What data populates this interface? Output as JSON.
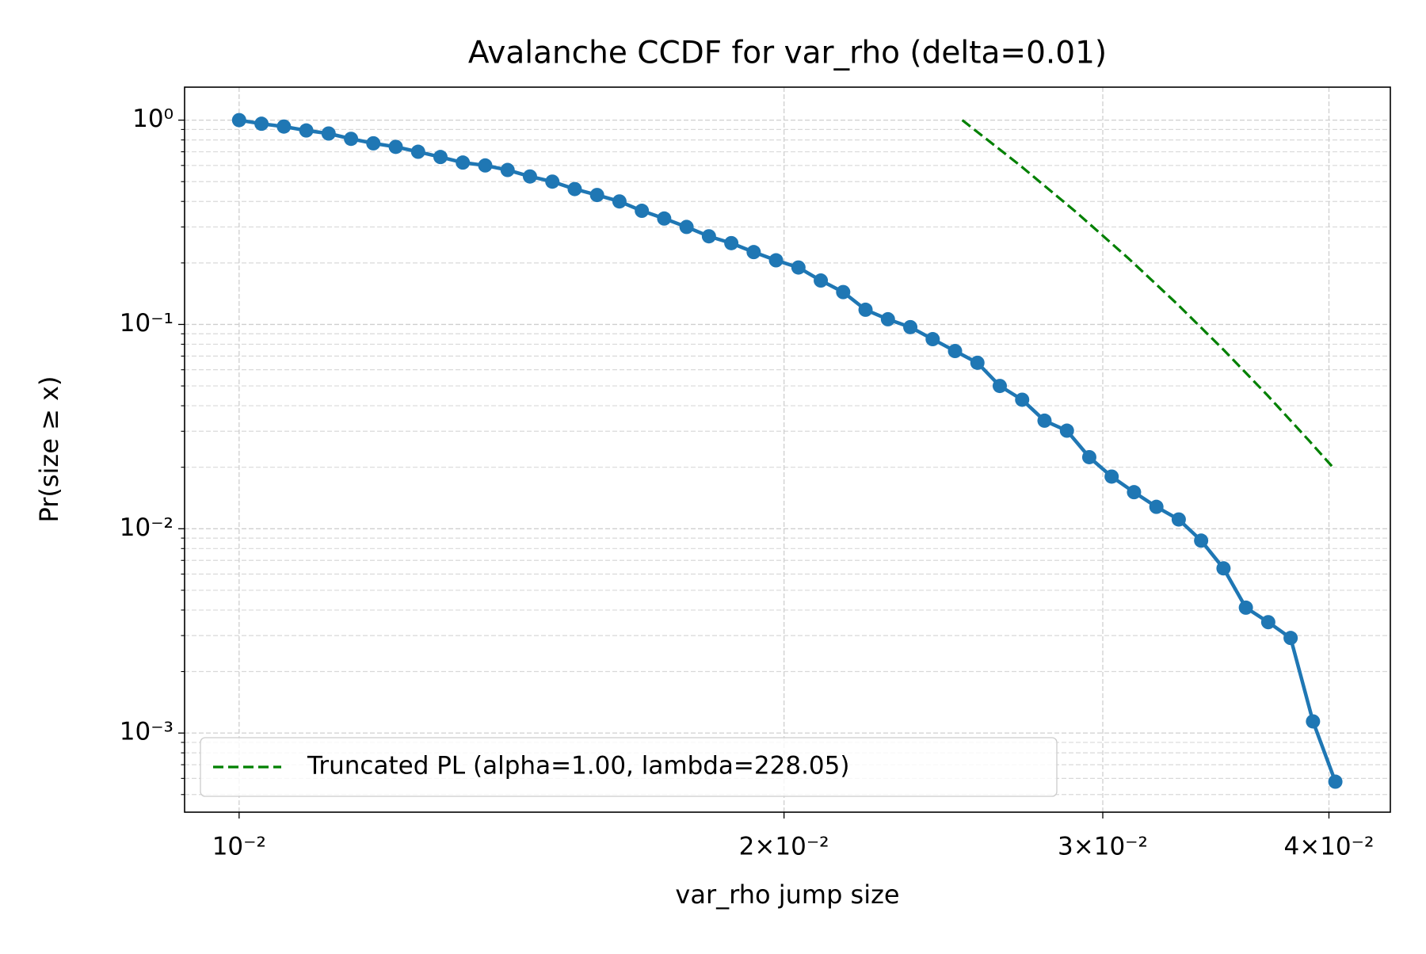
{
  "chart_data": {
    "type": "line",
    "title": "Avalanche CCDF for var_rho (delta=0.01)",
    "x_label": "var_rho jump size",
    "y_label": "Pr(size ≥ x)",
    "xscale": "log",
    "yscale": "log",
    "grid": true,
    "legend": "lower left",
    "xlim": [
      0.00933,
      0.04325
    ],
    "ylim": [
      0.00041,
      1.45
    ],
    "xticks": [
      {
        "value": 0.01,
        "label": "10⁻²"
      },
      {
        "value": 0.02,
        "label": "2×10⁻²"
      },
      {
        "value": 0.03,
        "label": "3×10⁻²"
      },
      {
        "value": 0.04,
        "label": "4×10⁻²"
      }
    ],
    "yticks": [
      {
        "value": 1,
        "label": "10⁰"
      },
      {
        "value": 0.1,
        "label": "10⁻¹"
      },
      {
        "value": 0.01,
        "label": "10⁻²"
      },
      {
        "value": 0.001,
        "label": "10⁻³"
      }
    ],
    "yminorticks": [
      0.0005,
      0.0006,
      0.0007,
      0.0008,
      0.0009,
      0.002,
      0.003,
      0.004,
      0.005,
      0.006,
      0.007,
      0.008,
      0.009,
      0.02,
      0.03,
      0.04,
      0.05,
      0.06,
      0.07,
      0.08,
      0.09,
      0.2,
      0.3,
      0.4,
      0.5,
      0.6,
      0.7,
      0.8,
      0.9
    ],
    "series": [
      {
        "color": "#1f77b4",
        "marker": true,
        "linestyle": "solid",
        "x": [
          0.01,
          0.010289,
          0.010586,
          0.010892,
          0.011206,
          0.01153,
          0.011862,
          0.012205,
          0.012557,
          0.012919,
          0.013292,
          0.013676,
          0.014071,
          0.014477,
          0.014895,
          0.015325,
          0.015767,
          0.016222,
          0.016691,
          0.017172,
          0.017668,
          0.018178,
          0.018703,
          0.019243,
          0.019798,
          0.02037,
          0.020958,
          0.021563,
          0.022185,
          0.022826,
          0.023485,
          0.024163,
          0.02486,
          0.025578,
          0.026316,
          0.027076,
          0.027857,
          0.028662,
          0.029489,
          0.03034,
          0.031216,
          0.032117,
          0.033044,
          0.033998,
          0.03498,
          0.035989,
          0.037028,
          0.038097,
          0.039197,
          0.040328
        ],
        "values": [
          1.0,
          0.96,
          0.93,
          0.89,
          0.86,
          0.81,
          0.77,
          0.74,
          0.7,
          0.66,
          0.62,
          0.6,
          0.57,
          0.53,
          0.5,
          0.46,
          0.43,
          0.4,
          0.36,
          0.33,
          0.3,
          0.27,
          0.25,
          0.226,
          0.206,
          0.19,
          0.164,
          0.144,
          0.118,
          0.106,
          0.097,
          0.0847,
          0.0741,
          0.0649,
          0.05,
          0.0428,
          0.0338,
          0.0302,
          0.0224,
          0.018,
          0.0151,
          0.0128,
          0.0111,
          0.00875,
          0.0064,
          0.00411,
          0.00349,
          0.00292,
          0.00114,
          0.000578
        ]
      },
      {
        "name": "Truncated PL (alpha=1.00, lambda=228.05)",
        "color": "#008000",
        "marker": false,
        "linestyle": "dashed",
        "x": [
          0.02509,
          0.027,
          0.029,
          0.031,
          0.033,
          0.035,
          0.037,
          0.039,
          0.0403
        ],
        "values": [
          1.0,
          0.601,
          0.3547,
          0.2103,
          0.1252,
          0.0748,
          0.0449,
          0.027,
          0.0195
        ]
      }
    ]
  }
}
